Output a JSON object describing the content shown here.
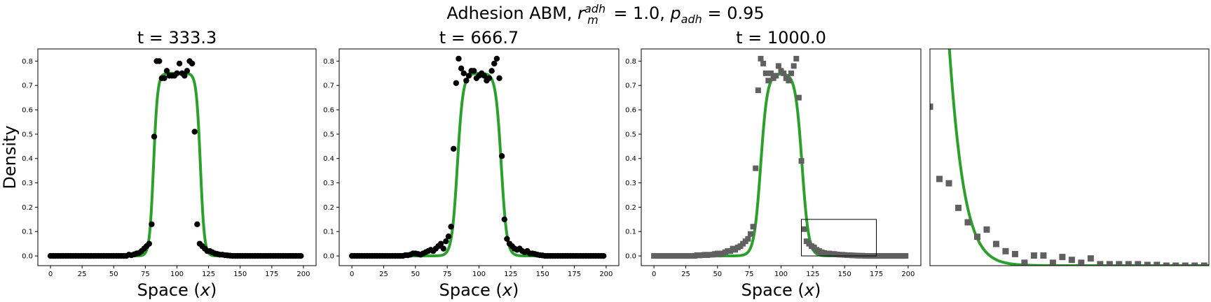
{
  "figure": {
    "suptitle_prefix": "Adhesion ABM, ",
    "suptitle_r": "r",
    "suptitle_r_sup": "adh",
    "suptitle_r_sub": "m",
    "suptitle_mid": " = 1.0, ",
    "suptitle_p": "p",
    "suptitle_p_sub": "adh",
    "suptitle_end": " = 0.95"
  },
  "colors": {
    "model_line": "#2ca02c",
    "abm_points_dark": "#000000",
    "abm_points_grey": "#606060"
  },
  "chart_data": [
    {
      "type": "scatter",
      "title": "t = 333.3",
      "xlabel": "Space (x)",
      "ylabel": "Density",
      "xlim": [
        -10,
        210
      ],
      "ylim": [
        -0.04,
        0.85
      ],
      "xticks": [
        0,
        25,
        50,
        75,
        100,
        125,
        150,
        175,
        200
      ],
      "yticks": [
        0.0,
        0.1,
        0.2,
        0.3,
        0.4,
        0.5,
        0.6,
        0.7,
        0.8
      ],
      "marker": "circle",
      "marker_color": "#000000",
      "series": [
        {
          "kind": "line",
          "color": "#2ca02c",
          "plateau": 0.75,
          "left_edge": 81.5,
          "right_edge": 118.5,
          "edge_width": 1.6,
          "x_range": [
            0,
            200
          ]
        },
        {
          "kind": "points",
          "x": [
            0,
            2,
            4,
            6,
            8,
            10,
            12,
            14,
            16,
            18,
            20,
            22,
            24,
            26,
            28,
            30,
            32,
            34,
            36,
            38,
            40,
            42,
            44,
            46,
            48,
            50,
            52,
            54,
            56,
            58,
            60,
            62,
            64,
            66,
            68,
            70,
            72,
            74,
            76,
            78,
            80,
            82,
            84,
            86,
            88,
            90,
            92,
            94,
            96,
            98,
            100,
            102,
            104,
            106,
            108,
            110,
            112,
            114,
            116,
            118,
            120,
            122,
            124,
            126,
            128,
            130,
            132,
            134,
            136,
            138,
            140,
            142,
            144,
            146,
            148,
            150,
            152,
            154,
            156,
            158,
            160,
            162,
            164,
            166,
            168,
            170,
            172,
            174,
            176,
            178,
            180,
            182,
            184,
            186,
            188,
            190,
            192,
            194,
            196,
            198
          ],
          "y": [
            0,
            0,
            0,
            0,
            0,
            0,
            0,
            0,
            0,
            0,
            0,
            0,
            0,
            0,
            0,
            0,
            0,
            0,
            0,
            0,
            0,
            0,
            0,
            0,
            0,
            0,
            0,
            0,
            0,
            0,
            0,
            0.005,
            0.003,
            0.006,
            0.01,
            0.012,
            0.02,
            0.03,
            0.04,
            0.05,
            0.13,
            0.49,
            0.8,
            0.8,
            0.73,
            0.73,
            0.76,
            0.74,
            0.74,
            0.74,
            0.75,
            0.79,
            0.75,
            0.74,
            0.76,
            0.8,
            0.79,
            0.51,
            0.13,
            0.05,
            0.04,
            0.03,
            0.02,
            0.02,
            0.015,
            0.01,
            0.008,
            0.005,
            0.005,
            0.003,
            0.002,
            0.001,
            0,
            0,
            0,
            0,
            0,
            0,
            0,
            0,
            0,
            0,
            0,
            0,
            0,
            0,
            0,
            0,
            0,
            0,
            0,
            0,
            0,
            0,
            0,
            0,
            0,
            0,
            0,
            0
          ]
        }
      ]
    },
    {
      "type": "scatter",
      "title": "t = 666.7",
      "xlabel": "Space (x)",
      "ylabel": "",
      "xlim": [
        -10,
        210
      ],
      "ylim": [
        -0.04,
        0.85
      ],
      "xticks": [
        0,
        25,
        50,
        75,
        100,
        125,
        150,
        175,
        200
      ],
      "yticks": [
        0.0,
        0.1,
        0.2,
        0.3,
        0.4,
        0.5,
        0.6,
        0.7,
        0.8
      ],
      "marker": "circle",
      "marker_color": "#000000",
      "series": [
        {
          "kind": "line",
          "color": "#2ca02c",
          "plateau": 0.75,
          "left_edge": 83.0,
          "right_edge": 117.5,
          "edge_width": 2.2,
          "x_range": [
            0,
            200
          ]
        },
        {
          "kind": "points",
          "x": [
            0,
            2,
            4,
            6,
            8,
            10,
            12,
            14,
            16,
            18,
            20,
            22,
            24,
            26,
            28,
            30,
            32,
            34,
            36,
            38,
            40,
            42,
            44,
            46,
            48,
            50,
            52,
            54,
            56,
            58,
            60,
            62,
            64,
            66,
            68,
            70,
            72,
            74,
            76,
            78,
            80,
            82,
            84,
            86,
            88,
            90,
            92,
            94,
            96,
            98,
            100,
            102,
            104,
            106,
            108,
            110,
            112,
            114,
            116,
            118,
            120,
            122,
            124,
            126,
            128,
            130,
            132,
            134,
            136,
            138,
            140,
            142,
            144,
            146,
            148,
            150,
            152,
            154,
            156,
            158,
            160,
            162,
            164,
            166,
            168,
            170,
            172,
            174,
            176,
            178,
            180,
            182,
            184,
            186,
            188,
            190,
            192,
            194,
            196,
            198
          ],
          "y": [
            0,
            0,
            0,
            0,
            0,
            0,
            0,
            0,
            0,
            0,
            0,
            0,
            0,
            0,
            0,
            0,
            0,
            0,
            0,
            0,
            0,
            0.003,
            0.003,
            0.005,
            0.01,
            0.01,
            0.008,
            0.005,
            0.01,
            0.015,
            0.02,
            0.025,
            0.02,
            0.03,
            0.04,
            0.05,
            0.03,
            0.06,
            0.08,
            0.12,
            0.44,
            0.71,
            0.81,
            0.77,
            0.75,
            0.72,
            0.74,
            0.76,
            0.76,
            0.73,
            0.74,
            0.75,
            0.74,
            0.72,
            0.73,
            0.76,
            0.79,
            0.81,
            0.73,
            0.41,
            0.15,
            0.07,
            0.05,
            0.04,
            0.03,
            0.025,
            0.03,
            0.02,
            0.015,
            0.02,
            0.01,
            0.01,
            0.008,
            0.005,
            0.003,
            0.002,
            0,
            0,
            0,
            0,
            0,
            0,
            0,
            0,
            0,
            0,
            0,
            0,
            0,
            0,
            0,
            0,
            0,
            0,
            0,
            0,
            0,
            0,
            0,
            0
          ]
        }
      ]
    },
    {
      "type": "scatter",
      "title": "t = 1000.0",
      "xlabel": "Space (x)",
      "ylabel": "",
      "xlim": [
        -10,
        210
      ],
      "ylim": [
        -0.04,
        0.85
      ],
      "xticks": [
        0,
        25,
        50,
        75,
        100,
        125,
        150,
        175,
        200
      ],
      "yticks": [
        0.0,
        0.1,
        0.2,
        0.3,
        0.4,
        0.5,
        0.6,
        0.7,
        0.8
      ],
      "marker": "square",
      "marker_color": "#606060",
      "inset_box": {
        "x": [
          116,
          175
        ],
        "y": [
          0.0,
          0.15
        ]
      },
      "series": [
        {
          "kind": "line",
          "color": "#2ca02c",
          "plateau": 0.75,
          "left_edge": 84.0,
          "right_edge": 116.5,
          "edge_width": 2.6,
          "x_range": [
            0,
            200
          ]
        },
        {
          "kind": "points",
          "x": [
            0,
            2,
            4,
            6,
            8,
            10,
            12,
            14,
            16,
            18,
            20,
            22,
            24,
            26,
            28,
            30,
            32,
            34,
            36,
            38,
            40,
            42,
            44,
            46,
            48,
            50,
            52,
            54,
            56,
            58,
            60,
            62,
            64,
            66,
            68,
            70,
            72,
            74,
            76,
            78,
            80,
            82,
            84,
            86,
            88,
            90,
            92,
            94,
            96,
            98,
            100,
            102,
            104,
            106,
            108,
            110,
            112,
            114,
            116,
            118,
            120,
            122,
            124,
            126,
            128,
            130,
            132,
            134,
            136,
            138,
            140,
            142,
            144,
            146,
            148,
            150,
            152,
            154,
            156,
            158,
            160,
            162,
            164,
            166,
            168,
            170,
            172,
            174,
            176,
            178,
            180,
            182,
            184,
            186,
            188,
            190,
            192,
            194,
            196,
            198
          ],
          "y": [
            0,
            0,
            0,
            0,
            0,
            0,
            0,
            0,
            0,
            0,
            0,
            0,
            0,
            0,
            0,
            0,
            0,
            0.003,
            0.002,
            0.003,
            0.005,
            0.003,
            0.005,
            0.005,
            0.008,
            0.01,
            0.008,
            0.01,
            0.015,
            0.02,
            0.02,
            0.03,
            0.025,
            0.035,
            0.04,
            0.05,
            0.06,
            0.07,
            0.09,
            0.12,
            0.36,
            0.68,
            0.81,
            0.79,
            0.75,
            0.72,
            0.75,
            0.73,
            0.74,
            0.78,
            0.76,
            0.75,
            0.73,
            0.72,
            0.75,
            0.78,
            0.81,
            0.65,
            0.39,
            0.11,
            0.06,
            0.05,
            0.04,
            0.035,
            0.025,
            0.02,
            0.015,
            0.012,
            0.01,
            0.01,
            0.008,
            0.008,
            0.006,
            0.005,
            0.005,
            0.004,
            0.003,
            0.003,
            0.002,
            0.002,
            0.001,
            0.001,
            0.001,
            0,
            0,
            0,
            0,
            0,
            0,
            0,
            0,
            0,
            0,
            0,
            0,
            0,
            0,
            0,
            0,
            0
          ]
        }
      ]
    },
    {
      "type": "scatter",
      "title": "",
      "xlabel": "",
      "ylabel": "",
      "xlim": [
        116,
        175
      ],
      "ylim": [
        0.0,
        0.15
      ],
      "xticks": [],
      "yticks": [],
      "marker": "square",
      "marker_color": "#606060",
      "series": [
        {
          "kind": "line",
          "color": "#2ca02c",
          "plateau": 0.75,
          "left_edge": 84.0,
          "right_edge": 116.5,
          "edge_width": 2.6,
          "x_range": [
            116,
            175
          ]
        },
        {
          "kind": "points",
          "x": [
            116,
            118,
            120,
            122,
            124,
            126,
            128,
            130,
            132,
            134,
            136,
            138,
            140,
            142,
            144,
            146,
            148,
            150,
            152,
            154,
            156,
            158,
            160,
            162,
            164,
            166,
            168,
            170,
            172,
            174
          ],
          "y": [
            0.11,
            0.06,
            0.057,
            0.04,
            0.03,
            0.02,
            0.025,
            0.015,
            0.01,
            0.008,
            0.002,
            0.007,
            0.007,
            0.002,
            0.006,
            0.004,
            0.002,
            0.005,
            0.001,
            0.001,
            0.001,
            0.001,
            0.001,
            0.0005,
            0.0005,
            0,
            0,
            0,
            0,
            0
          ]
        }
      ]
    }
  ]
}
